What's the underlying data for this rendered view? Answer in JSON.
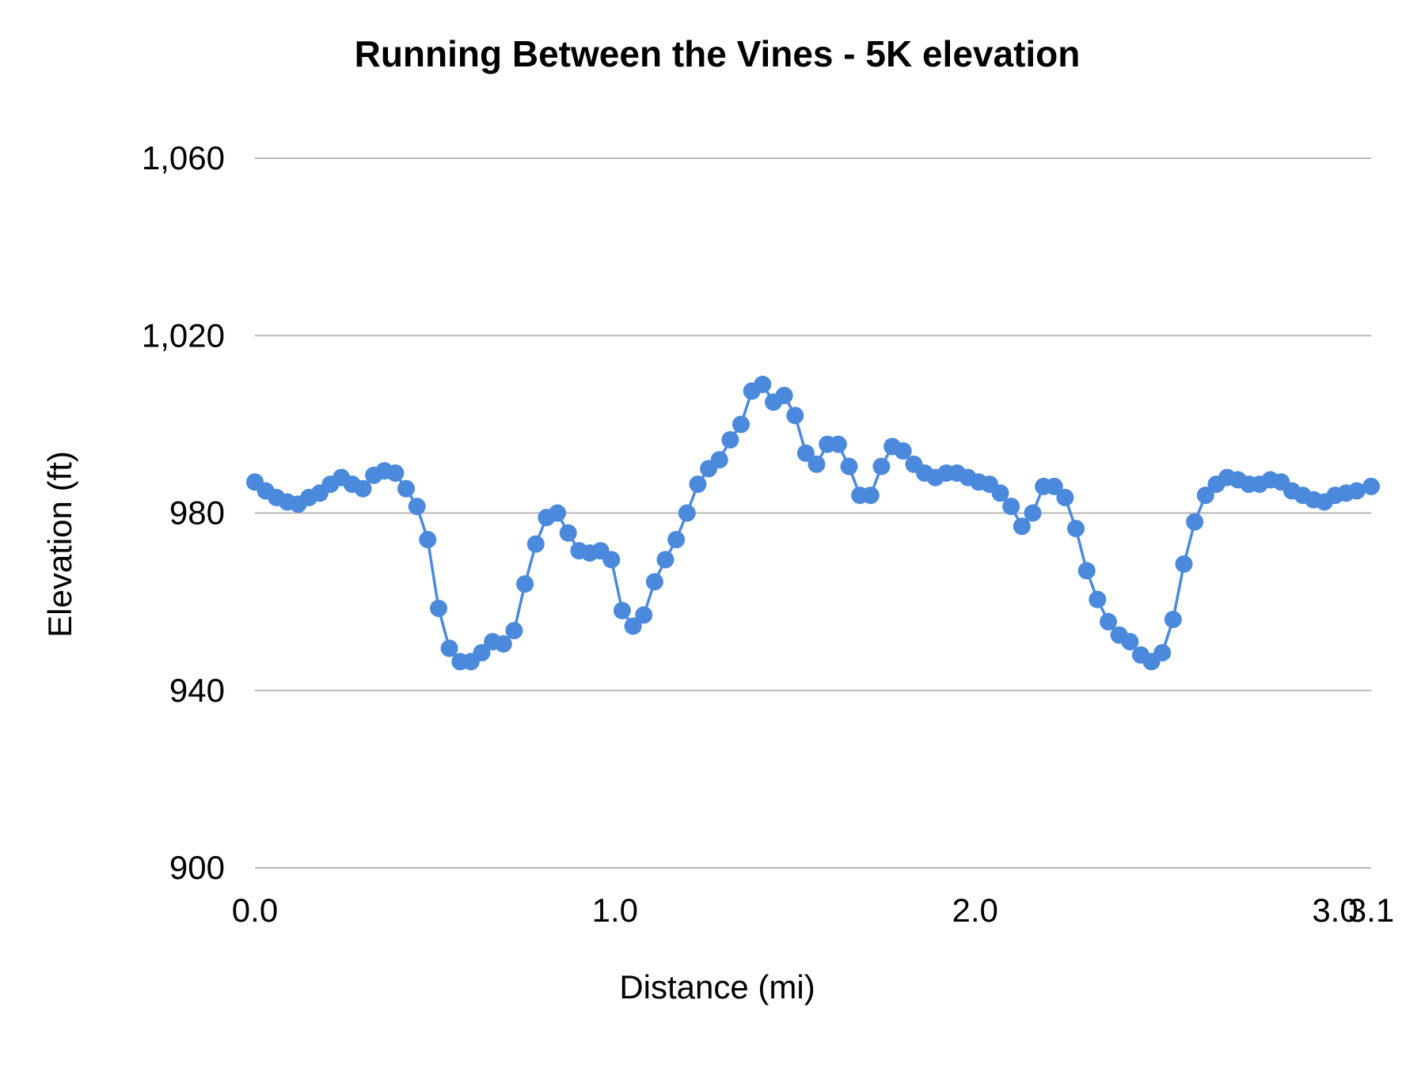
{
  "chart_data": {
    "type": "line",
    "title": "Running Between the Vines - 5K elevation",
    "xlabel": "Distance (mi)",
    "ylabel": "Elevation (ft)",
    "xlim": [
      0,
      3.1
    ],
    "ylim": [
      900,
      1060
    ],
    "x_ticks": [
      {
        "value": 0.0,
        "label": "0.0"
      },
      {
        "value": 1.0,
        "label": "1.0"
      },
      {
        "value": 2.0,
        "label": "2.0"
      },
      {
        "value": 3.0,
        "label": "3.0"
      },
      {
        "value": 3.1,
        "label": "3.1"
      }
    ],
    "y_ticks": [
      {
        "value": 900,
        "label": "900"
      },
      {
        "value": 940,
        "label": "940"
      },
      {
        "value": 980,
        "label": "980"
      },
      {
        "value": 1020,
        "label": "1,020"
      },
      {
        "value": 1060,
        "label": "1,060"
      }
    ],
    "grid": true,
    "legend": "none",
    "series": [
      {
        "color": "#4a89dc",
        "x": [
          0.0,
          0.03,
          0.06,
          0.09,
          0.12,
          0.15,
          0.18,
          0.21,
          0.24,
          0.27,
          0.3,
          0.33,
          0.36,
          0.39,
          0.42,
          0.45,
          0.48,
          0.51,
          0.54,
          0.57,
          0.6,
          0.63,
          0.66,
          0.69,
          0.72,
          0.75,
          0.78,
          0.81,
          0.84,
          0.87,
          0.9,
          0.93,
          0.96,
          0.99,
          1.02,
          1.05,
          1.08,
          1.11,
          1.14,
          1.17,
          1.2,
          1.23,
          1.26,
          1.29,
          1.32,
          1.35,
          1.38,
          1.41,
          1.44,
          1.47,
          1.5,
          1.53,
          1.56,
          1.59,
          1.62,
          1.65,
          1.68,
          1.71,
          1.74,
          1.77,
          1.8,
          1.83,
          1.86,
          1.89,
          1.92,
          1.95,
          1.98,
          2.01,
          2.04,
          2.07,
          2.1,
          2.13,
          2.16,
          2.19,
          2.22,
          2.25,
          2.28,
          2.31,
          2.34,
          2.37,
          2.4,
          2.43,
          2.46,
          2.49,
          2.52,
          2.55,
          2.58,
          2.61,
          2.64,
          2.67,
          2.7,
          2.73,
          2.76,
          2.79,
          2.82,
          2.85,
          2.88,
          2.91,
          2.94,
          2.97,
          3.0,
          3.03,
          3.06,
          3.1
        ],
        "y": [
          987,
          985,
          983.5,
          982.5,
          982,
          983.5,
          984.5,
          986.5,
          988,
          986.5,
          985.5,
          988.5,
          989.5,
          989,
          985.5,
          981.5,
          974,
          958.5,
          949.5,
          946.5,
          946.5,
          948.5,
          951,
          950.5,
          953.5,
          964,
          973,
          979,
          980,
          975.5,
          971.5,
          971,
          971.5,
          969.5,
          958,
          954.5,
          957,
          964.5,
          969.5,
          974,
          980,
          986.5,
          990,
          992,
          996.5,
          1000,
          1007.5,
          1009,
          1005,
          1006.5,
          1002,
          993.5,
          991,
          995.5,
          995.5,
          990.5,
          984,
          984,
          990.5,
          995,
          994,
          991,
          989,
          988,
          989,
          989,
          988,
          987,
          986.5,
          984.5,
          981.5,
          977,
          980,
          986,
          986,
          983.5,
          976.5,
          967,
          960.5,
          955.5,
          952.5,
          951,
          948,
          946.5,
          948.5,
          956,
          968.5,
          978,
          984,
          986.5,
          988,
          987.5,
          986.5,
          986.5,
          987.5,
          987,
          985,
          984,
          983,
          982.5,
          984,
          984.5,
          985,
          986
        ]
      }
    ]
  }
}
